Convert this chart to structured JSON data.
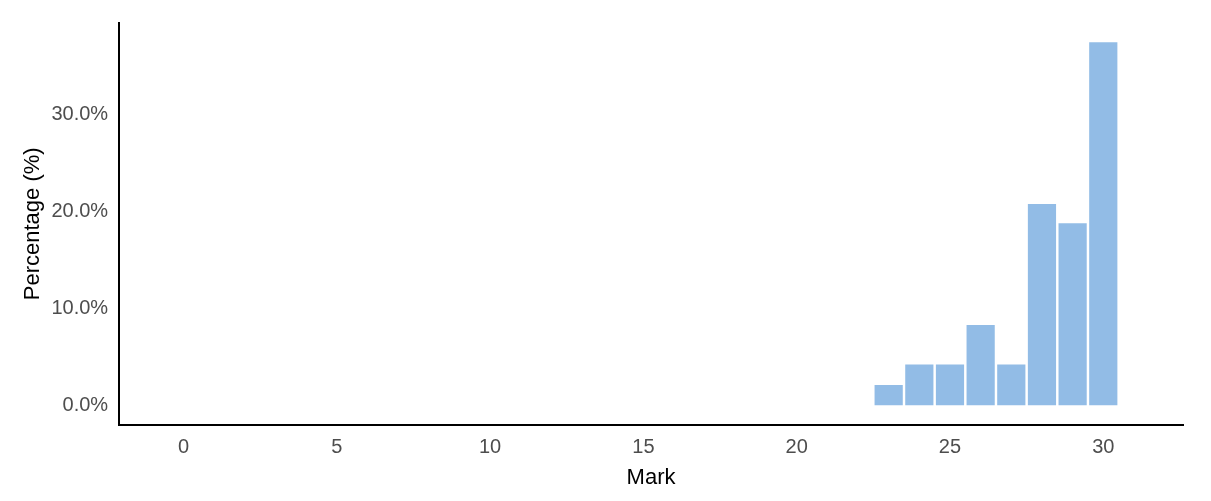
{
  "chart_data": {
    "type": "bar",
    "xlabel": "Mark",
    "ylabel": "Percentage (%)",
    "x": [
      23,
      24,
      25,
      26,
      27,
      28,
      29,
      30
    ],
    "values": [
      2.1,
      4.2,
      4.2,
      8.3,
      4.2,
      20.8,
      18.8,
      37.5
    ],
    "color": "#92bce6",
    "xlim": [
      -2.1,
      32.6
    ],
    "xticks": [
      0,
      5,
      10,
      15,
      20,
      25,
      30
    ],
    "ylim": [
      -2,
      39.5
    ],
    "yticks": [
      {
        "value": 0,
        "label": "0.0%"
      },
      {
        "value": 10,
        "label": "10.0%"
      },
      {
        "value": 20,
        "label": "20.0%"
      },
      {
        "value": 30,
        "label": "30.0%"
      }
    ],
    "grid": false,
    "legend": false
  }
}
